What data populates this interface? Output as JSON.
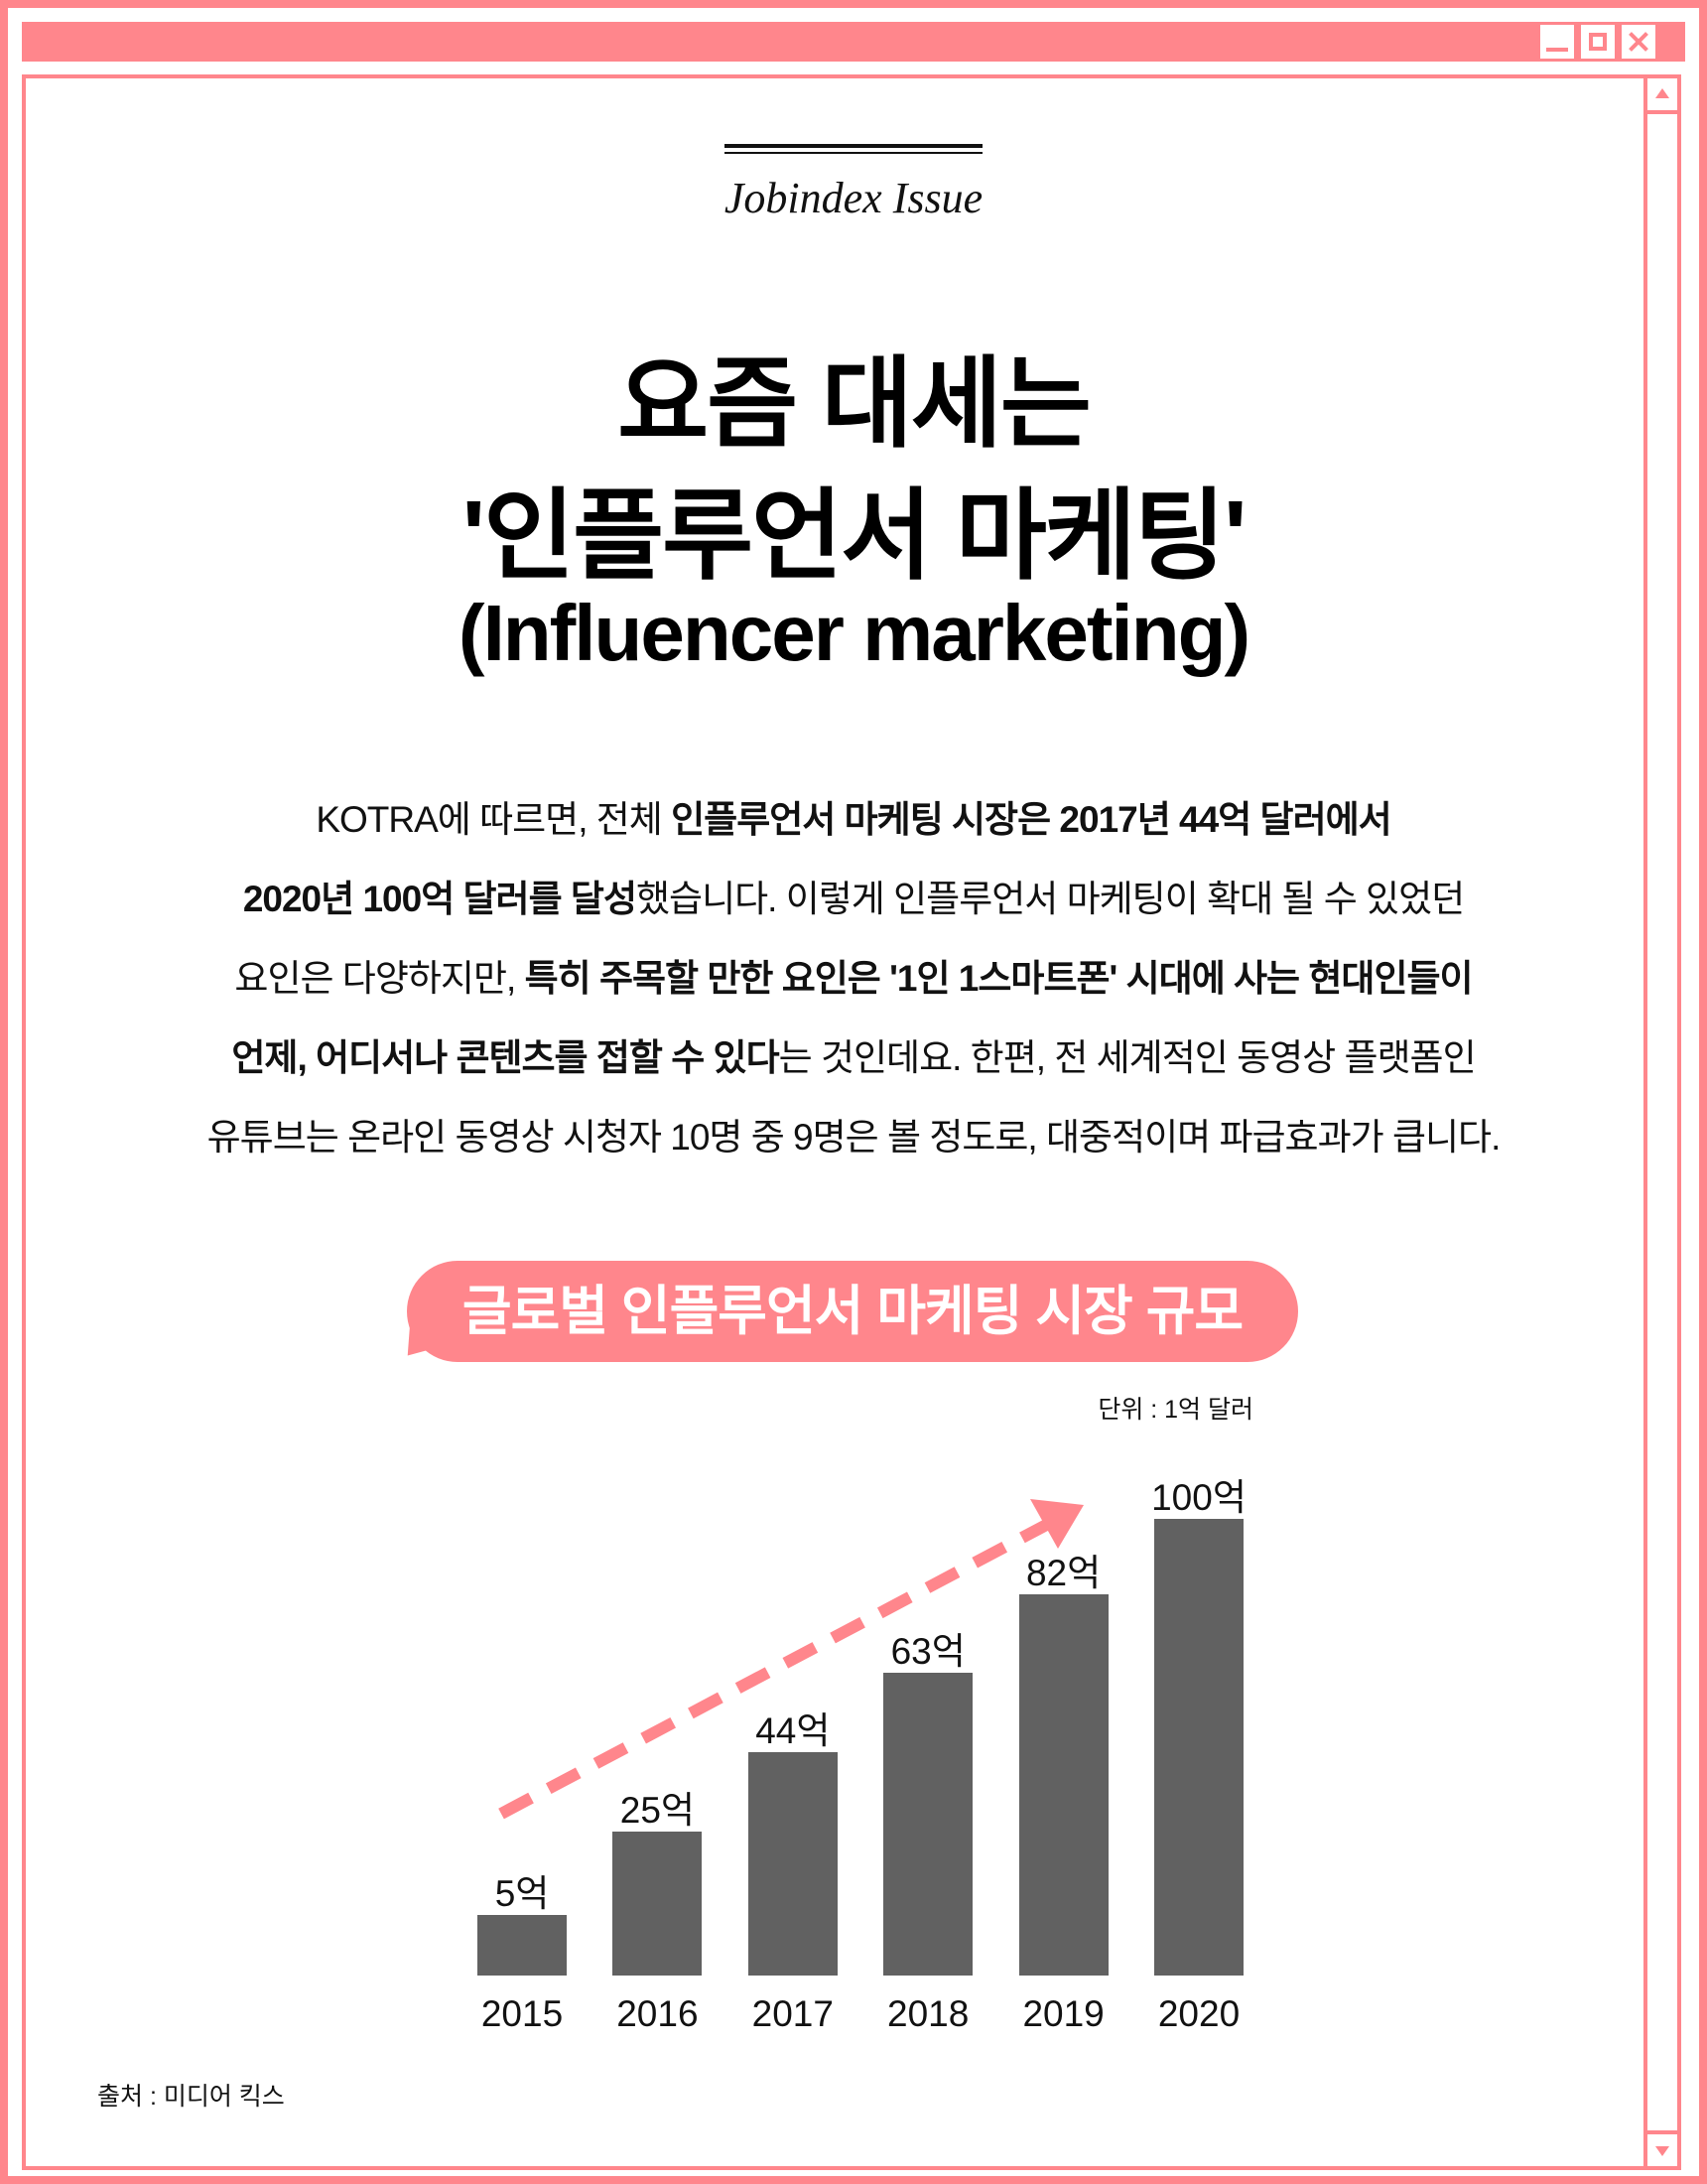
{
  "window": {
    "accent": "#ff868c",
    "buttons": [
      "minimize",
      "maximize",
      "close"
    ]
  },
  "header": {
    "kicker": "Jobindex Issue"
  },
  "title": {
    "line1": "요즘 대세는",
    "line2": "'인플루언서 마케팅'",
    "line3": "(Influencer marketing)"
  },
  "paragraph": [
    [
      {
        "t": "KOTRA에 따르면, 전체 ",
        "b": false
      },
      {
        "t": "인플루언서 마케팅 시장은 2017년 44억 달러에서",
        "b": true
      }
    ],
    [
      {
        "t": "2020년 100억 달러를 달성",
        "b": true
      },
      {
        "t": "했습니다. 이렇게 인플루언서 마케팅이 확대 될 수 있었던",
        "b": false
      }
    ],
    [
      {
        "t": "요인은 다양하지만, ",
        "b": false
      },
      {
        "t": "특히 주목할 만한 요인은 '1인 1스마트폰' 시대에 사는 현대인들이",
        "b": true
      }
    ],
    [
      {
        "t": "언제, 어디서나 콘텐츠를 접할 수 있다",
        "b": true
      },
      {
        "t": "는 것인데요. 한편, 전 세계적인 동영상 플랫폼인",
        "b": false
      }
    ],
    [
      {
        "t": "유튜브는 온라인 동영상 시청자 10명 중 9명은 볼 정도로, 대중적이며 파급효과가 큽니다.",
        "b": false
      }
    ]
  ],
  "chart_data": {
    "type": "bar",
    "title": "글로벌 인플루언서 마케팅 시장 규모",
    "unit": "단위 : 1억 달러",
    "categories": [
      "2015",
      "2016",
      "2017",
      "2018",
      "2019",
      "2020"
    ],
    "values": [
      5,
      25,
      44,
      63,
      82,
      100
    ],
    "value_labels": [
      "5억",
      "25억",
      "44억",
      "63억",
      "82억",
      "100억"
    ],
    "bar_color": "#616161",
    "trend_arrow_color": "#ff868c",
    "grid": false
  },
  "source": "출처 : 미디어 킥스"
}
